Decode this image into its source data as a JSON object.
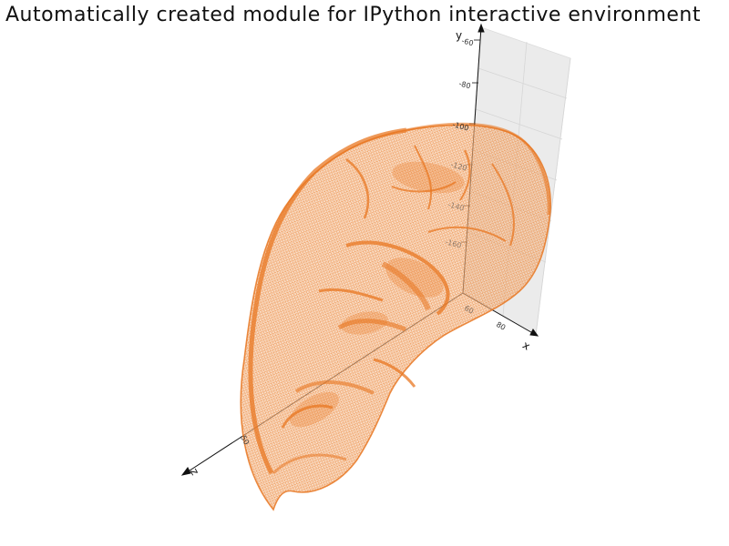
{
  "title": "Automatically created module for IPython interactive environment",
  "axes": {
    "y_name": "y",
    "x_name": "x",
    "z_name": "z",
    "y_ticks": [
      "-60",
      "-80",
      "-100",
      "-120",
      "-140",
      "-160"
    ],
    "x_ticks": [
      "60",
      "80"
    ],
    "z_ticks": [
      "50"
    ]
  },
  "mesh": {
    "color": "#e87722",
    "style": "wireframe surface",
    "pane_color": "#ebebeb"
  }
}
